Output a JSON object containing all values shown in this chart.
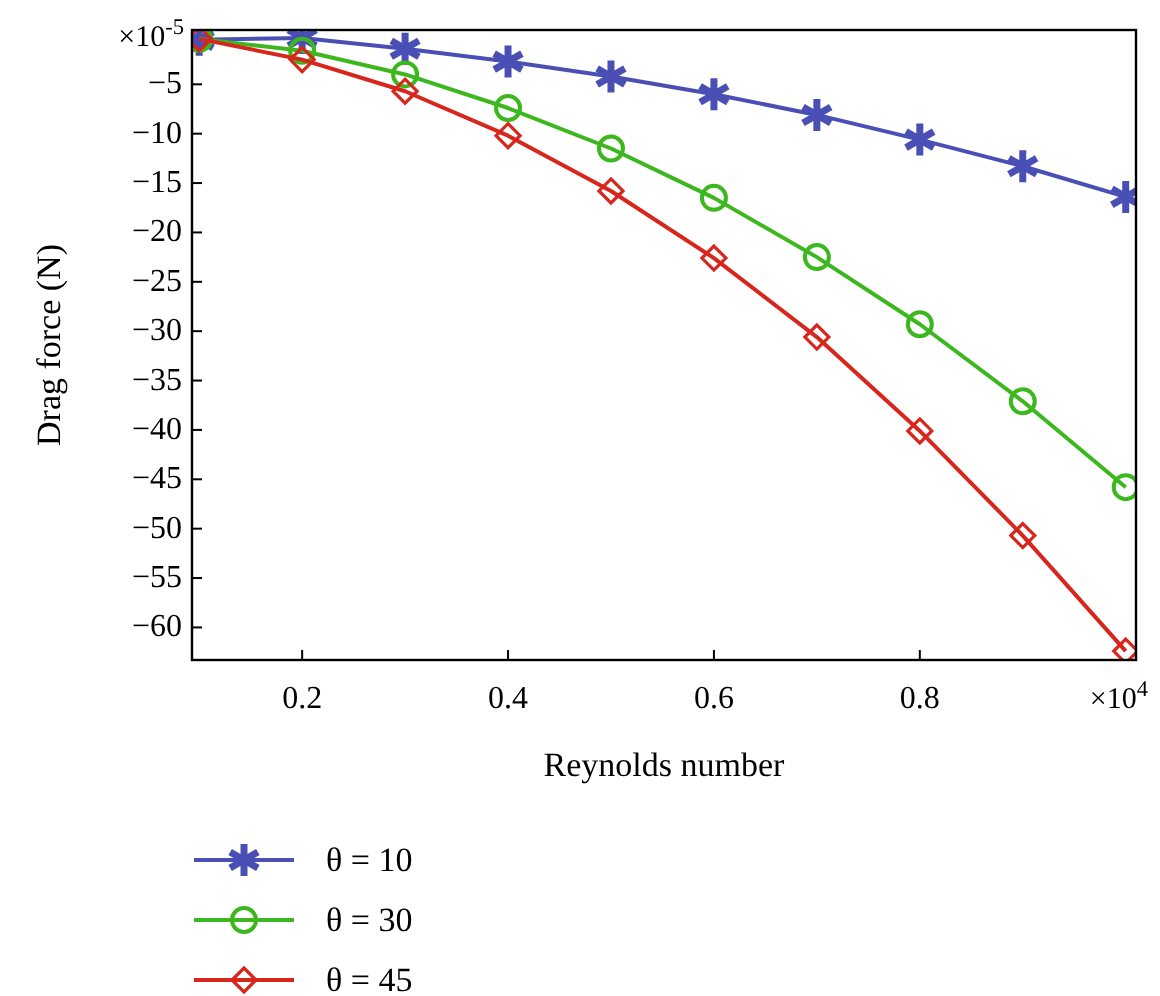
{
  "chart_data": {
    "type": "line",
    "xlabel": "Reynolds number",
    "ylabel": "Drag force (N)",
    "x": [
      0.1,
      0.2,
      0.3,
      0.4,
      0.5,
      0.6,
      0.7,
      0.8,
      0.9,
      1.0
    ],
    "xlim": [
      0.093,
      1.01
    ],
    "xticks": [
      0.2,
      0.4,
      0.6,
      0.8
    ],
    "ylim": [
      -63.3,
      0.5
    ],
    "yticks": [
      -5,
      -10,
      -15,
      -20,
      -25,
      -30,
      -35,
      -40,
      -45,
      -50,
      -55,
      -60
    ],
    "annotations": [
      "×10$^{-5}$",
      "×10$^{4}$"
    ],
    "legend": "bottom",
    "grid": false,
    "line_style": "solid",
    "series": [
      {
        "name": "θ = 10",
        "color": "#4a4fb5",
        "marker": "cross",
        "values": [
          -0.5,
          -0.3,
          -1.4,
          -2.7,
          -4.2,
          -6.0,
          -8.1,
          -10.6,
          -13.3,
          -16.4
        ]
      },
      {
        "name": "θ = 30",
        "color": "#3cb81e",
        "marker": "circle",
        "values": [
          -0.4,
          -1.6,
          -4.0,
          -7.4,
          -11.5,
          -16.5,
          -22.5,
          -29.3,
          -37.1,
          -45.8
        ]
      },
      {
        "name": "θ = 45",
        "color": "#d9261c",
        "marker": "diamond",
        "values": [
          -0.4,
          -2.5,
          -5.7,
          -10.2,
          -15.8,
          -22.6,
          -30.6,
          -40.1,
          -50.7,
          -62.4
        ]
      }
    ]
  }
}
